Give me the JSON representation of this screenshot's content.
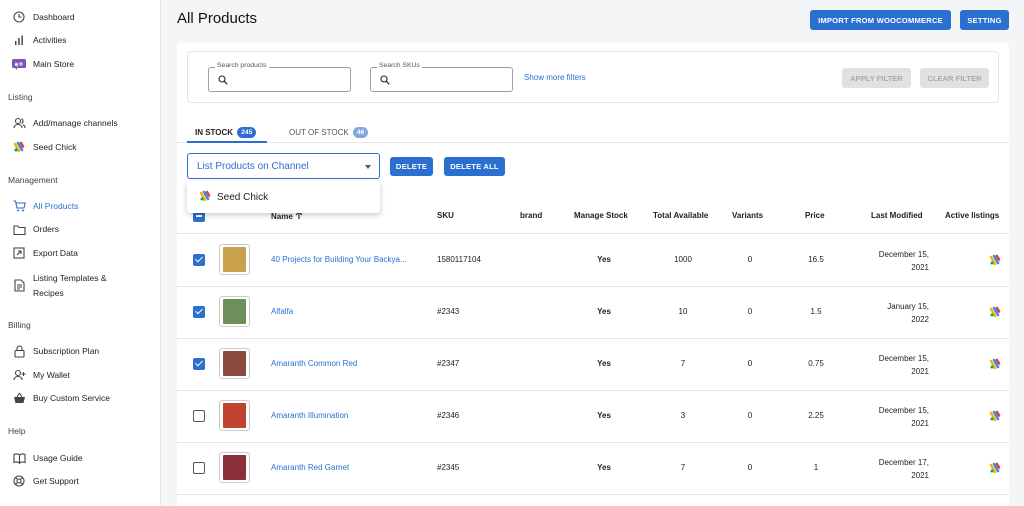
{
  "sidebar": {
    "top_items": [
      {
        "label": "Dashboard",
        "icon": "clock-icon"
      },
      {
        "label": "Activities",
        "icon": "bar-chart-icon"
      },
      {
        "label": "Main Store",
        "icon": "woocommerce-icon"
      }
    ],
    "sections": [
      {
        "label": "Listing",
        "items": [
          {
            "label": "Add/manage channels",
            "icon": "users-icon"
          },
          {
            "label": "Seed Chick",
            "icon": "google-channel-icon"
          }
        ]
      },
      {
        "label": "Management",
        "items": [
          {
            "label": "All Products",
            "icon": "cart-icon",
            "active": true
          },
          {
            "label": "Orders",
            "icon": "folder-icon"
          },
          {
            "label": "Export Data",
            "icon": "export-icon"
          },
          {
            "label": "Listing Templates &",
            "label2": "Recipes",
            "icon": "document-icon"
          }
        ]
      },
      {
        "label": "Billing",
        "items": [
          {
            "label": "Subscription Plan",
            "icon": "lock-icon"
          },
          {
            "label": "My Wallet",
            "icon": "user-plus-icon"
          },
          {
            "label": "Buy Custom Service",
            "icon": "basket-icon"
          }
        ]
      },
      {
        "label": "Help",
        "items": [
          {
            "label": "Usage Guide",
            "icon": "book-icon"
          },
          {
            "label": "Get Support",
            "icon": "support-icon"
          }
        ]
      }
    ]
  },
  "header": {
    "title": "All Products",
    "import_label": "IMPORT FROM WOOCOMMERCE",
    "setting_label": "SETTING"
  },
  "filters": {
    "search_products_label": "Search products",
    "search_skus_label": "Search SKUs",
    "more_filters": "Show more filters",
    "apply_label": "APPLY FILTER",
    "clear_label": "CLEAR FILTER"
  },
  "tabs": [
    {
      "label": "IN STOCK",
      "count": "245"
    },
    {
      "label": "OUT OF STOCK",
      "count": "46"
    }
  ],
  "actions": {
    "select_value": "List Products on Channel",
    "delete_label": "DELETE",
    "delete_all_label": "DELETE ALL",
    "dropdown_option": "Seed Chick"
  },
  "table": {
    "columns": [
      "Name",
      "SKU",
      "brand",
      "Manage Stock",
      "Total Available",
      "Variants",
      "Price",
      "Last Modified",
      "Active listings"
    ],
    "rows": [
      {
        "checked": true,
        "name": "40 Projects for Building Your Backya...",
        "sku": "1580117104",
        "brand": "",
        "manage": "Yes",
        "total": "1000",
        "variants": "0",
        "price": "16.5",
        "mod1": "December 15,",
        "mod2": "2021",
        "thumb": "#c9a04b"
      },
      {
        "checked": true,
        "name": "Alfalfa",
        "sku": "#2343",
        "brand": "",
        "manage": "Yes",
        "total": "10",
        "variants": "0",
        "price": "1.5",
        "mod1": "January 15,",
        "mod2": "2022",
        "thumb": "#6f8f5a"
      },
      {
        "checked": true,
        "name": "Amaranth Common Red",
        "sku": "#2347",
        "brand": "",
        "manage": "Yes",
        "total": "7",
        "variants": "0",
        "price": "0.75",
        "mod1": "December 15,",
        "mod2": "2021",
        "thumb": "#8a4a3e"
      },
      {
        "checked": false,
        "name": "Amaranth Illumination",
        "sku": "#2346",
        "brand": "",
        "manage": "Yes",
        "total": "3",
        "variants": "0",
        "price": "2.25",
        "mod1": "December 15,",
        "mod2": "2021",
        "thumb": "#c0432f"
      },
      {
        "checked": false,
        "name": "Amaranth Red Garnet",
        "sku": "#2345",
        "brand": "",
        "manage": "Yes",
        "total": "7",
        "variants": "0",
        "price": "1",
        "mod1": "December 17,",
        "mod2": "2021",
        "thumb": "#8b2f3a"
      }
    ]
  },
  "colors": {
    "accent": "#2b6fd1"
  }
}
